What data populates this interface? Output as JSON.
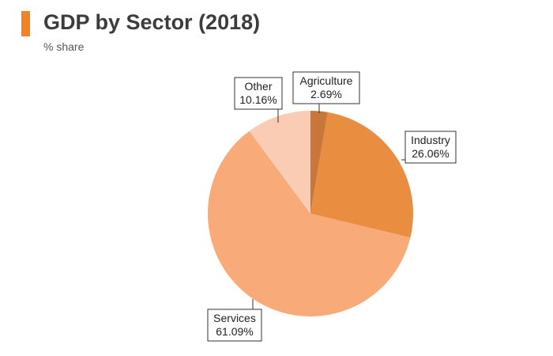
{
  "header": {
    "title": "GDP by Sector (2018)",
    "subtitle": "% share"
  },
  "colors": {
    "accent": "#f58220"
  },
  "chart_data": {
    "type": "pie",
    "title": "GDP by Sector (2018)",
    "subtitle": "% share",
    "start": "12 o'clock",
    "direction": "clockwise",
    "slices": [
      {
        "name": "Agriculture",
        "value": 2.69,
        "value_label": "2.69%",
        "color": "#c8763a"
      },
      {
        "name": "Industry",
        "value": 26.06,
        "value_label": "26.06%",
        "color": "#e98e41"
      },
      {
        "name": "Services",
        "value": 61.09,
        "value_label": "61.09%",
        "color": "#f8ab79"
      },
      {
        "name": "Other",
        "value": 10.16,
        "value_label": "10.16%",
        "color": "#f9ccb3"
      }
    ]
  }
}
